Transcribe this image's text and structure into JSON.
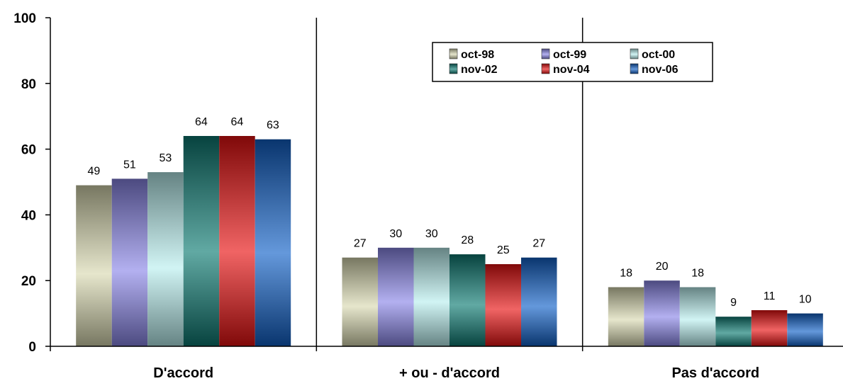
{
  "chart_data": {
    "type": "bar",
    "categories": [
      "D'accord",
      "+ ou - d'accord",
      "Pas d'accord"
    ],
    "series": [
      {
        "name": "oct-98",
        "values": [
          49,
          27,
          18
        ],
        "color": "#d8d8b0"
      },
      {
        "name": "oct-99",
        "values": [
          51,
          30,
          20
        ],
        "color": "#8a86e8"
      },
      {
        "name": "oct-00",
        "values": [
          53,
          30,
          18
        ],
        "color": "#b8eeee"
      },
      {
        "name": "nov-02",
        "values": [
          64,
          28,
          9
        ],
        "color": "#0c7a72"
      },
      {
        "name": "nov-04",
        "values": [
          64,
          25,
          11
        ],
        "color": "#e81010"
      },
      {
        "name": "nov-06",
        "values": [
          63,
          27,
          10
        ],
        "color": "#1060c8"
      }
    ],
    "ylim": [
      0,
      100
    ],
    "yticks": [
      0,
      20,
      40,
      60,
      80,
      100
    ],
    "legend": {
      "position": "top-center",
      "columns": 3
    },
    "grid": false
  }
}
